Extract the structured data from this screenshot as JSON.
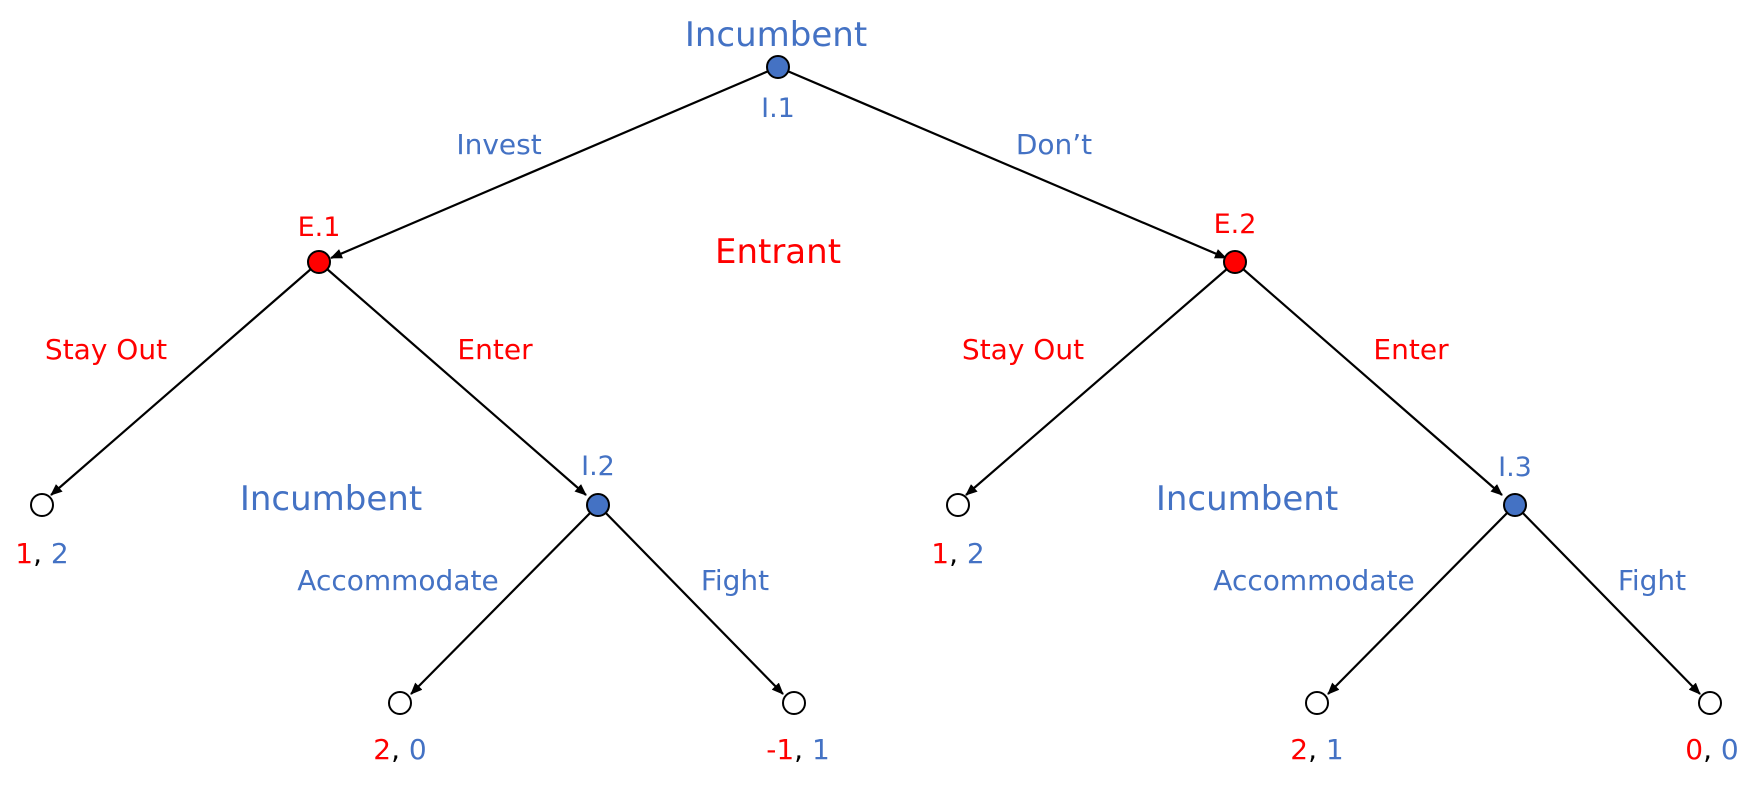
{
  "colors": {
    "incumbent": "#4472C4",
    "entrant": "#FF0000",
    "edge": "#000000",
    "terminal_fill": "#FFFFFF"
  },
  "player_labels": {
    "incumbent_top": "Incumbent",
    "entrant_mid": "Entrant",
    "incumbent_left": "Incumbent",
    "incumbent_right": "Incumbent"
  },
  "nodes": {
    "I1": "I.1",
    "E1": "E.1",
    "E2": "E.2",
    "I2": "I.2",
    "I3": "I.3"
  },
  "actions": {
    "invest": "Invest",
    "dont": "Don’t",
    "stay_out_1": "Stay Out",
    "enter_1": "Enter",
    "stay_out_2": "Stay Out",
    "enter_2": "Enter",
    "accommodate_1": "Accommodate",
    "fight_1": "Fight",
    "accommodate_2": "Accommodate",
    "fight_2": "Fight"
  },
  "payoffs": {
    "t1": {
      "entrant": "1",
      "incumbent": "2"
    },
    "t2": {
      "entrant": "2",
      "incumbent": "0"
    },
    "t3": {
      "entrant": "-1",
      "incumbent": "1"
    },
    "t4": {
      "entrant": "1",
      "incumbent": "2"
    },
    "t5": {
      "entrant": "2",
      "incumbent": "1"
    },
    "t6": {
      "entrant": "0",
      "incumbent": "0"
    }
  },
  "separator": ", "
}
